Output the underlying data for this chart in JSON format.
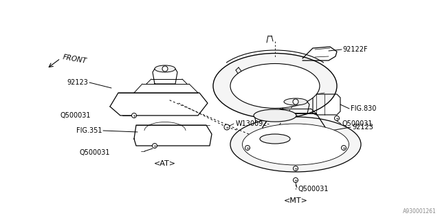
{
  "bg_color": "#ffffff",
  "line_color": "#000000",
  "watermark": "A930001261",
  "labels": {
    "front": "FRONT",
    "92122F": "92122F",
    "W130092": "W130092-",
    "FIG830": "FIG.830",
    "Q500031": "Q500031",
    "92123": "92123",
    "FIG351": "FIG.351",
    "AT": "<AT>",
    "MT": "<MT>"
  },
  "font_size": 7.0,
  "fig_width": 6.4,
  "fig_height": 3.2,
  "dpi": 100
}
